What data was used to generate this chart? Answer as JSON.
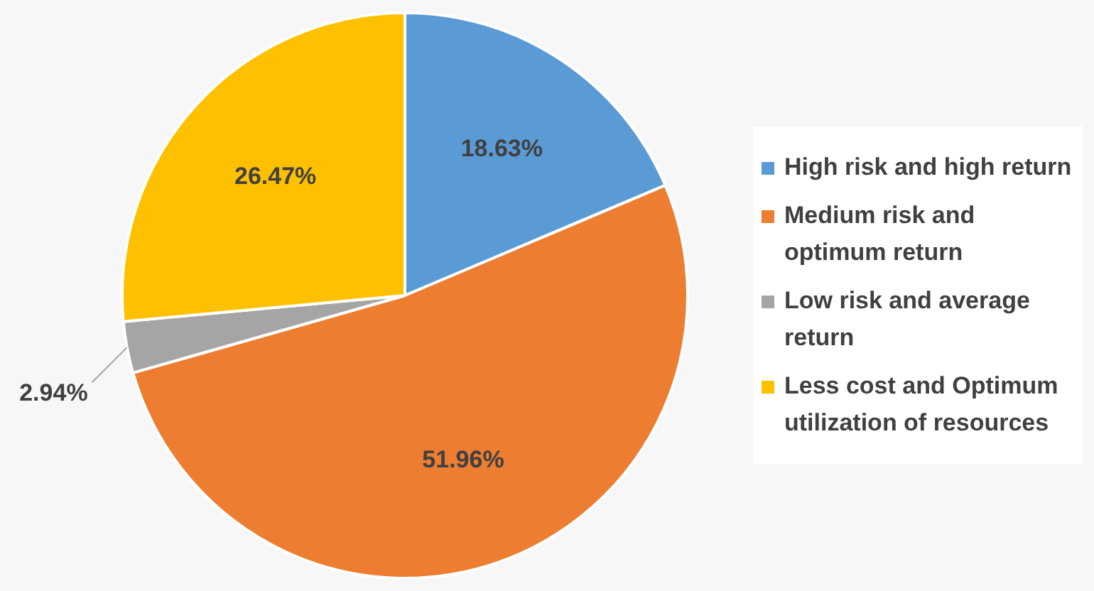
{
  "chart_data": {
    "type": "pie",
    "categories": [
      "High risk and high return",
      "Medium risk and optimum return",
      "Low risk and average return",
      "Less cost and Optimum utilization of resources"
    ],
    "values": [
      18.63,
      51.96,
      2.94,
      26.47
    ],
    "colors": [
      "#5b9bd5",
      "#ed7d31",
      "#a5a5a5",
      "#ffc000"
    ],
    "value_labels": [
      "18.63%",
      "51.96%",
      "2.94%",
      "26.47%"
    ],
    "legend": "right"
  }
}
